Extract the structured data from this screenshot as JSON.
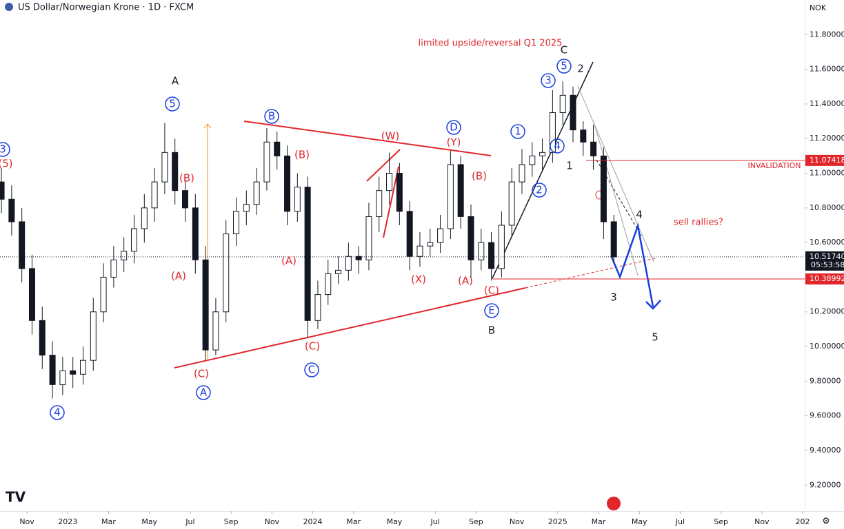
{
  "chart_data": {
    "type": "candlestick",
    "title": "US Dollar/Norwegian Krone · 1D · FXCM",
    "currency": "NOK",
    "x": [
      -1.25,
      -0.75,
      -0.25,
      0.25,
      0.75,
      1.25,
      1.75,
      2.25,
      2.75,
      3.25,
      3.75,
      4.25,
      4.75,
      5.25,
      5.75,
      6.25,
      6.75,
      7.25,
      7.75,
      8.25,
      8.75,
      9.25,
      9.75,
      10.25,
      10.75,
      11.25,
      11.75,
      12.25,
      12.75,
      13.25,
      13.75,
      14.25,
      14.75,
      15.25,
      15.75,
      16.25,
      16.75,
      17.25,
      17.75,
      18.25,
      18.75,
      19.25,
      19.75,
      20.25,
      20.75,
      21.25,
      21.75,
      22.25,
      22.75,
      23.25,
      23.75,
      24.25,
      24.75,
      25.25,
      25.75,
      26.25,
      26.75,
      27.25,
      27.75,
      28.25,
      28.75
    ],
    "open": [
      10.95,
      10.85,
      10.72,
      10.45,
      10.15,
      9.95,
      9.78,
      9.86,
      9.84,
      9.92,
      10.2,
      10.4,
      10.5,
      10.55,
      10.68,
      10.8,
      10.95,
      11.12,
      10.9,
      10.8,
      10.5,
      9.98,
      10.2,
      10.65,
      10.78,
      10.82,
      10.95,
      11.18,
      11.1,
      10.78,
      10.92,
      10.15,
      10.3,
      10.42,
      10.44,
      10.52,
      10.5,
      10.75,
      10.9,
      11.0,
      10.78,
      10.52,
      10.58,
      10.6,
      10.68,
      11.05,
      10.75,
      10.5,
      10.6,
      10.45,
      10.7,
      10.95,
      11.05,
      11.1,
      11.12,
      11.35,
      11.45,
      11.25,
      11.18,
      11.1,
      10.72
    ],
    "high": [
      11.03,
      10.93,
      10.8,
      10.53,
      10.23,
      10.03,
      9.94,
      9.94,
      10.0,
      10.28,
      10.48,
      10.58,
      10.63,
      10.76,
      10.88,
      11.03,
      11.29,
      11.2,
      10.98,
      10.88,
      10.58,
      10.28,
      10.73,
      10.86,
      10.9,
      11.03,
      11.26,
      11.24,
      11.16,
      11.0,
      10.98,
      10.38,
      10.5,
      10.52,
      10.6,
      10.58,
      10.83,
      10.98,
      11.12,
      11.06,
      10.84,
      10.66,
      10.68,
      10.76,
      11.13,
      11.1,
      10.82,
      10.68,
      10.66,
      10.78,
      11.03,
      11.14,
      11.18,
      11.2,
      11.48,
      11.53,
      11.5,
      11.3,
      11.28,
      11.15,
      10.76
    ],
    "low": [
      10.77,
      10.64,
      10.37,
      10.07,
      9.87,
      9.7,
      9.72,
      9.76,
      9.78,
      9.86,
      10.14,
      10.34,
      10.43,
      10.48,
      10.6,
      10.72,
      10.88,
      10.82,
      10.72,
      10.42,
      9.92,
      9.95,
      10.14,
      10.58,
      10.7,
      10.76,
      10.9,
      11.02,
      10.7,
      10.72,
      10.05,
      10.1,
      10.24,
      10.36,
      10.38,
      10.42,
      10.44,
      10.66,
      10.82,
      10.7,
      10.44,
      10.46,
      10.52,
      10.54,
      10.62,
      10.68,
      10.4,
      10.44,
      10.38,
      10.4,
      10.64,
      10.88,
      10.98,
      11.02,
      11.06,
      11.28,
      11.18,
      11.1,
      11.02,
      10.62,
      10.48
    ],
    "close": [
      10.85,
      10.72,
      10.45,
      10.15,
      9.95,
      9.78,
      9.86,
      9.84,
      9.92,
      10.2,
      10.4,
      10.5,
      10.55,
      10.68,
      10.8,
      10.95,
      11.12,
      10.9,
      10.8,
      10.5,
      9.98,
      10.2,
      10.65,
      10.78,
      10.82,
      10.95,
      11.18,
      11.1,
      10.78,
      10.92,
      10.15,
      10.3,
      10.42,
      10.44,
      10.52,
      10.5,
      10.75,
      10.9,
      11.0,
      10.78,
      10.52,
      10.58,
      10.6,
      10.68,
      11.05,
      10.75,
      10.5,
      10.6,
      10.45,
      10.7,
      10.95,
      11.05,
      11.1,
      11.12,
      11.35,
      11.45,
      11.25,
      11.18,
      11.1,
      10.72,
      10.5174
    ],
    "up_color": "#ffffff",
    "down_color": "#131722",
    "xlim": [
      -1.32,
      38.1
    ],
    "xticks": [
      {
        "value": 0,
        "label": "Nov"
      },
      {
        "value": 2,
        "label": "2023"
      },
      {
        "value": 4,
        "label": "Mar"
      },
      {
        "value": 6,
        "label": "May"
      },
      {
        "value": 8,
        "label": "Jul"
      },
      {
        "value": 10,
        "label": "Sep"
      },
      {
        "value": 12,
        "label": "Nov"
      },
      {
        "value": 14,
        "label": "2024"
      },
      {
        "value": 16,
        "label": "Mar"
      },
      {
        "value": 18,
        "label": "May"
      },
      {
        "value": 20,
        "label": "Jul"
      },
      {
        "value": 22,
        "label": "Sep"
      },
      {
        "value": 24,
        "label": "Nov"
      },
      {
        "value": 26,
        "label": "2025"
      },
      {
        "value": 28,
        "label": "Mar"
      },
      {
        "value": 30,
        "label": "May"
      },
      {
        "value": 32,
        "label": "Jul"
      },
      {
        "value": 34,
        "label": "Sep"
      },
      {
        "value": 36,
        "label": "Nov"
      },
      {
        "value": 38,
        "label": "202"
      }
    ],
    "ylim": [
      9.05,
      12.0
    ],
    "yticks": [
      {
        "value": 9.2,
        "label": "9.20000"
      },
      {
        "value": 9.4,
        "label": "9.40000"
      },
      {
        "value": 9.6,
        "label": "9.60000"
      },
      {
        "value": 9.8,
        "label": "9.80000"
      },
      {
        "value": 10.0,
        "label": "10.00000"
      },
      {
        "value": 10.2,
        "label": "10.20000"
      },
      {
        "value": 10.4,
        "label": "10.40000"
      },
      {
        "value": 10.6,
        "label": "10.60000"
      },
      {
        "value": 10.8,
        "label": "10.80000"
      },
      {
        "value": 11.0,
        "label": "11.00000"
      },
      {
        "value": 11.2,
        "label": "11.20000"
      },
      {
        "value": 11.4,
        "label": "11.40000"
      },
      {
        "value": 11.6,
        "label": "11.60000"
      },
      {
        "value": 11.8,
        "label": "11.80000"
      }
    ],
    "levels": [
      11.07418,
      10.38992
    ],
    "level_color": "#e0262b",
    "last_price": {
      "value": 10.5174,
      "label": "10.51740"
    },
    "countdown": "05:53:58",
    "annotations": [
      "A",
      "C",
      "2",
      "1",
      "B",
      "3",
      "4",
      "5",
      "3",
      "5",
      "B",
      "D",
      "1",
      "3",
      "5",
      "4",
      "2",
      "E",
      "C",
      "A",
      "4",
      "(5)",
      "(B)",
      "(A)",
      "(C)",
      "(B)",
      "(A)",
      "(C)",
      "(W)",
      "(Y)",
      "(X)",
      "(A)",
      "(B)",
      "(C)",
      "limited upside/reversal Q1 2025",
      "INVALIDATION",
      "sell rallies?"
    ]
  }
}
